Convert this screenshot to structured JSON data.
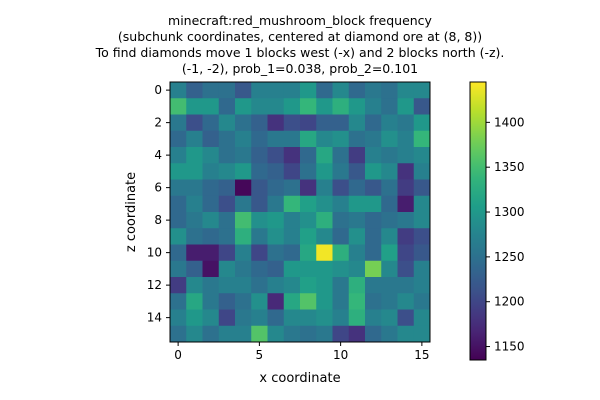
{
  "chart_data": {
    "type": "heatmap",
    "title_lines": [
      "minecraft:red_mushroom_block frequency",
      "(subchunk coordinates, centered at diamond ore at (8, 8))",
      "To find diamonds move 1 blocks west (-x) and 2 blocks north (-z).",
      "(-1, -2), prob_1=0.038, prob_2=0.101"
    ],
    "xlabel": "x coordinate",
    "ylabel": "z coordinate",
    "x_ticks": [
      0,
      5,
      10,
      15
    ],
    "y_ticks": [
      0,
      2,
      4,
      6,
      8,
      10,
      12,
      14
    ],
    "colorbar_ticks": [
      1150,
      1200,
      1250,
      1300,
      1350,
      1400
    ],
    "colormap": "viridis",
    "vmin": 1135,
    "vmax": 1445,
    "grid": [
      [
        1270,
        1230,
        1250,
        1250,
        1220,
        1270,
        1270,
        1270,
        1300,
        1240,
        1280,
        1240,
        1260,
        1250,
        1280,
        1280
      ],
      [
        1350,
        1300,
        1300,
        1240,
        1300,
        1280,
        1280,
        1300,
        1340,
        1300,
        1330,
        1300,
        1270,
        1250,
        1300,
        1220
      ],
      [
        1260,
        1210,
        1240,
        1280,
        1250,
        1230,
        1180,
        1210,
        1200,
        1230,
        1230,
        1280,
        1240,
        1270,
        1260,
        1300
      ],
      [
        1240,
        1270,
        1230,
        1250,
        1270,
        1240,
        1260,
        1260,
        1320,
        1280,
        1290,
        1250,
        1260,
        1290,
        1270,
        1340
      ],
      [
        1270,
        1300,
        1280,
        1250,
        1260,
        1230,
        1210,
        1180,
        1240,
        1320,
        1250,
        1190,
        1270,
        1260,
        1270,
        1280
      ],
      [
        1300,
        1300,
        1270,
        1280,
        1300,
        1240,
        1230,
        1200,
        1250,
        1300,
        1260,
        1220,
        1300,
        1280,
        1180,
        1270
      ],
      [
        1260,
        1260,
        1240,
        1230,
        1140,
        1220,
        1240,
        1250,
        1180,
        1270,
        1210,
        1240,
        1220,
        1250,
        1190,
        1220
      ],
      [
        1240,
        1270,
        1240,
        1210,
        1260,
        1220,
        1260,
        1340,
        1310,
        1290,
        1270,
        1300,
        1300,
        1240,
        1160,
        1280
      ],
      [
        1240,
        1260,
        1280,
        1250,
        1350,
        1290,
        1300,
        1270,
        1290,
        1330,
        1250,
        1260,
        1240,
        1250,
        1260,
        1280
      ],
      [
        1290,
        1250,
        1240,
        1250,
        1330,
        1260,
        1290,
        1270,
        1310,
        1280,
        1240,
        1290,
        1240,
        1280,
        1190,
        1210
      ],
      [
        1240,
        1160,
        1160,
        1200,
        1270,
        1200,
        1250,
        1240,
        1320,
        1440,
        1330,
        1270,
        1240,
        1310,
        1200,
        1220
      ],
      [
        1260,
        1230,
        1150,
        1280,
        1260,
        1240,
        1230,
        1300,
        1300,
        1300,
        1290,
        1280,
        1380,
        1280,
        1210,
        1270
      ],
      [
        1190,
        1280,
        1260,
        1270,
        1270,
        1250,
        1270,
        1280,
        1310,
        1300,
        1260,
        1330,
        1260,
        1260,
        1260,
        1270
      ],
      [
        1250,
        1320,
        1260,
        1230,
        1250,
        1290,
        1170,
        1320,
        1360,
        1300,
        1260,
        1340,
        1250,
        1260,
        1280,
        1260
      ],
      [
        1270,
        1300,
        1280,
        1200,
        1260,
        1270,
        1240,
        1280,
        1280,
        1290,
        1270,
        1330,
        1270,
        1280,
        1210,
        1280
      ],
      [
        1250,
        1280,
        1250,
        1270,
        1270,
        1360,
        1280,
        1260,
        1250,
        1260,
        1200,
        1180,
        1240,
        1260,
        1280,
        1280
      ]
    ]
  }
}
